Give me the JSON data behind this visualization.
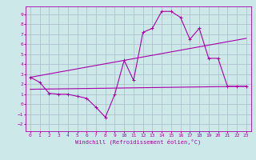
{
  "title": "",
  "xlabel": "Windchill (Refroidissement éolien,°C)",
  "bg_color": "#cce8e8",
  "grid_color": "#aabbcc",
  "line_color": "#aa00aa",
  "xlim": [
    -0.5,
    23.5
  ],
  "ylim": [
    -2.7,
    9.8
  ],
  "xticks": [
    0,
    1,
    2,
    3,
    4,
    5,
    6,
    7,
    8,
    9,
    10,
    11,
    12,
    13,
    14,
    15,
    16,
    17,
    18,
    19,
    20,
    21,
    22,
    23
  ],
  "yticks": [
    -2,
    -1,
    0,
    1,
    2,
    3,
    4,
    5,
    6,
    7,
    8,
    9
  ],
  "series1_x": [
    0,
    1,
    2,
    3,
    4,
    5,
    6,
    7,
    8,
    9,
    10,
    11,
    12,
    13,
    14,
    15,
    16,
    17,
    18,
    19,
    20,
    21,
    22,
    23
  ],
  "series1_y": [
    2.7,
    2.2,
    1.1,
    1.0,
    1.0,
    0.8,
    0.6,
    -0.3,
    -1.3,
    1.0,
    4.4,
    2.4,
    7.2,
    7.6,
    9.3,
    9.3,
    8.7,
    6.5,
    7.6,
    4.6,
    4.6,
    1.8,
    1.8,
    1.8
  ],
  "series2_x": [
    0,
    23
  ],
  "series2_y": [
    1.5,
    1.8
  ],
  "series3_x": [
    0,
    23
  ],
  "series3_y": [
    2.7,
    6.6
  ],
  "marker_size": 2.5,
  "line_width": 0.8,
  "tick_fontsize": 4.5,
  "xlabel_fontsize": 5.0
}
